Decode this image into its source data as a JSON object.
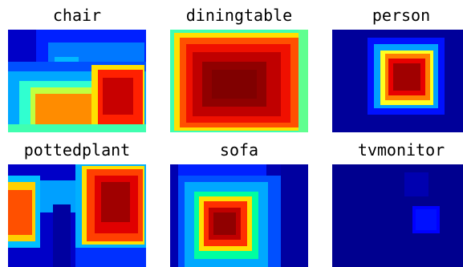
{
  "title": "",
  "panels": [
    {
      "label": "chair"
    },
    {
      "label": "diningtable"
    },
    {
      "label": "person"
    },
    {
      "label": "pottedplant"
    },
    {
      "label": "sofa"
    },
    {
      "label": "tvmonitor"
    }
  ],
  "colormap": "jet",
  "colors": {
    "background": "#00008f",
    "hot": "#800000",
    "mid": "#00ff80"
  }
}
